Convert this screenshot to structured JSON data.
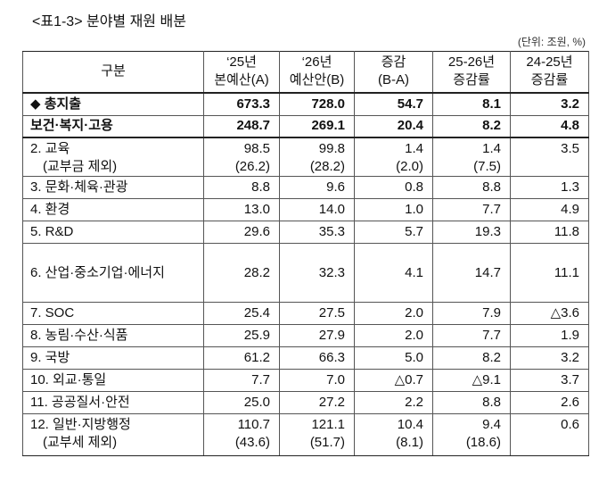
{
  "header": {
    "title": "<표1-3> 분야별 재원 배분",
    "unit": "(단위: 조원, %)"
  },
  "table": {
    "columns": [
      [
        "구분"
      ],
      [
        "‘25년",
        "본예산(A)"
      ],
      [
        "‘26년",
        "예산안(B)"
      ],
      [
        "증감",
        "(B-A)"
      ],
      [
        "25-26년",
        "증감률"
      ],
      [
        "24-25년",
        "증감률"
      ]
    ],
    "rows": [
      [
        [
          "◆ 총지출"
        ],
        [
          "673.3"
        ],
        [
          "728.0"
        ],
        [
          "54.7"
        ],
        [
          "8.1"
        ],
        [
          "3.2"
        ]
      ],
      [
        [
          "보건·복지·고용"
        ],
        [
          "248.7"
        ],
        [
          "269.1"
        ],
        [
          "20.4"
        ],
        [
          "8.2"
        ],
        [
          "4.8"
        ]
      ],
      [
        [
          "2. 교육",
          "(교부금 제외)"
        ],
        [
          "98.5",
          "(26.2)"
        ],
        [
          "99.8",
          "(28.2)"
        ],
        [
          "1.4",
          "(2.0)"
        ],
        [
          "1.4",
          "(7.5)"
        ],
        [
          "3.5"
        ]
      ],
      [
        [
          "3. 문화·체육·관광"
        ],
        [
          "8.8"
        ],
        [
          "9.6"
        ],
        [
          "0.8"
        ],
        [
          "8.8"
        ],
        [
          "1.3"
        ]
      ],
      [
        [
          "4. 환경"
        ],
        [
          "13.0"
        ],
        [
          "14.0"
        ],
        [
          "1.0"
        ],
        [
          "7.7"
        ],
        [
          "4.9"
        ]
      ],
      [
        [
          "5. R&D"
        ],
        [
          "29.6"
        ],
        [
          "35.3"
        ],
        [
          "5.7"
        ],
        [
          "19.3"
        ],
        [
          "11.8"
        ]
      ],
      [
        [
          "6. 산업·중소기업·에너지"
        ],
        [
          "28.2"
        ],
        [
          "32.3"
        ],
        [
          "4.1"
        ],
        [
          "14.7"
        ],
        [
          "11.1"
        ]
      ],
      [
        [
          "7. SOC"
        ],
        [
          "25.4"
        ],
        [
          "27.5"
        ],
        [
          "2.0"
        ],
        [
          "7.9"
        ],
        [
          "△3.6"
        ]
      ],
      [
        [
          "8. 농림·수산·식품"
        ],
        [
          "25.9"
        ],
        [
          "27.9"
        ],
        [
          "2.0"
        ],
        [
          "7.7"
        ],
        [
          "1.9"
        ]
      ],
      [
        [
          "9. 국방"
        ],
        [
          "61.2"
        ],
        [
          "66.3"
        ],
        [
          "5.0"
        ],
        [
          "8.2"
        ],
        [
          "3.2"
        ]
      ],
      [
        [
          "10. 외교·통일"
        ],
        [
          "7.7"
        ],
        [
          "7.0"
        ],
        [
          "△0.7"
        ],
        [
          "△9.1"
        ],
        [
          "3.7"
        ]
      ],
      [
        [
          "11. 공공질서·안전"
        ],
        [
          "25.0"
        ],
        [
          "27.2"
        ],
        [
          "2.2"
        ],
        [
          "8.8"
        ],
        [
          "2.6"
        ]
      ],
      [
        [
          "12. 일반·지방행정",
          "(교부세 제외)"
        ],
        [
          "110.7",
          "(43.6)"
        ],
        [
          "121.1",
          "(51.7)"
        ],
        [
          "10.4",
          "(8.1)"
        ],
        [
          "9.4",
          "(18.6)"
        ],
        [
          "0.6"
        ]
      ]
    ]
  }
}
